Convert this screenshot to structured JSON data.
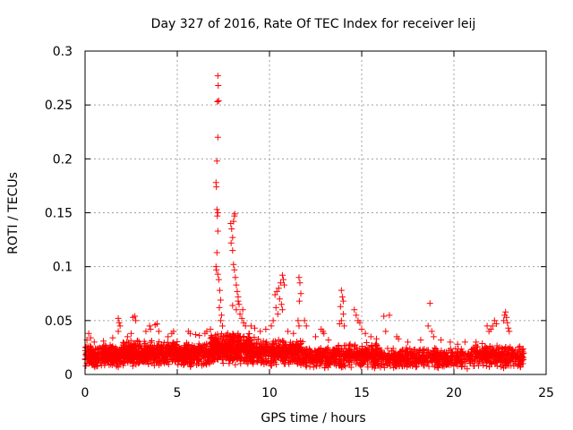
{
  "chart_data": {
    "type": "scatter",
    "title": "Day 327 of 2016, Rate Of TEC Index for receiver leij",
    "xlabel": "GPS time / hours",
    "ylabel": "ROTI / TECUs",
    "xlim": [
      0,
      25
    ],
    "ylim": [
      0,
      0.3
    ],
    "grid": true,
    "marker": "+",
    "series_color": "#ff0000",
    "x_ticks": [
      {
        "value": 0,
        "label": "0"
      },
      {
        "value": 5,
        "label": "5"
      },
      {
        "value": 10,
        "label": "10"
      },
      {
        "value": 15,
        "label": "15"
      },
      {
        "value": 20,
        "label": "20"
      },
      {
        "value": 25,
        "label": "25"
      }
    ],
    "y_ticks": [
      {
        "value": 0,
        "label": "0"
      },
      {
        "value": 0.05,
        "label": "0.05"
      },
      {
        "value": 0.1,
        "label": "0.1"
      },
      {
        "value": 0.15,
        "label": "0.15"
      },
      {
        "value": 0.2,
        "label": "0.2"
      },
      {
        "value": 0.25,
        "label": "0.25"
      },
      {
        "value": 0.3,
        "label": "0.3"
      }
    ],
    "baseline": {
      "x_start": 0,
      "x_end": 23.8,
      "seed": 327,
      "note": "dense band of ROTI values in roughly 0.005-0.03 TECU/s for every satellite pass",
      "bands": [
        {
          "x": [
            0.0,
            2.0
          ],
          "y": [
            0.006,
            0.028
          ],
          "n": 320
        },
        {
          "x": [
            2.0,
            5.0
          ],
          "y": [
            0.007,
            0.032
          ],
          "n": 480
        },
        {
          "x": [
            5.0,
            6.8
          ],
          "y": [
            0.007,
            0.03
          ],
          "n": 280
        },
        {
          "x": [
            6.8,
            9.2
          ],
          "y": [
            0.008,
            0.04
          ],
          "n": 460
        },
        {
          "x": [
            9.2,
            11.8
          ],
          "y": [
            0.007,
            0.034
          ],
          "n": 380
        },
        {
          "x": [
            11.8,
            13.5
          ],
          "y": [
            0.006,
            0.026
          ],
          "n": 200
        },
        {
          "x": [
            13.5,
            16.0
          ],
          "y": [
            0.005,
            0.03
          ],
          "n": 300
        },
        {
          "x": [
            16.0,
            18.0
          ],
          "y": [
            0.005,
            0.026
          ],
          "n": 220
        },
        {
          "x": [
            18.0,
            21.0
          ],
          "y": [
            0.005,
            0.025
          ],
          "n": 280
        },
        {
          "x": [
            21.0,
            22.5
          ],
          "y": [
            0.006,
            0.03
          ],
          "n": 160
        },
        {
          "x": [
            22.5,
            23.8
          ],
          "y": [
            0.005,
            0.027
          ],
          "n": 140
        }
      ]
    },
    "points": [
      [
        7.2,
        0.277
      ],
      [
        7.22,
        0.268
      ],
      [
        7.18,
        0.253
      ],
      [
        7.24,
        0.254
      ],
      [
        7.2,
        0.22
      ],
      [
        7.15,
        0.198
      ],
      [
        7.1,
        0.178
      ],
      [
        7.12,
        0.174
      ],
      [
        7.15,
        0.153
      ],
      [
        7.2,
        0.15
      ],
      [
        7.17,
        0.147
      ],
      [
        7.2,
        0.133
      ],
      [
        7.15,
        0.113
      ],
      [
        7.1,
        0.1
      ],
      [
        7.12,
        0.097
      ],
      [
        7.2,
        0.093
      ],
      [
        7.25,
        0.088
      ],
      [
        7.3,
        0.078
      ],
      [
        7.35,
        0.069
      ],
      [
        7.28,
        0.062
      ],
      [
        7.4,
        0.055
      ],
      [
        7.35,
        0.05
      ],
      [
        7.45,
        0.045
      ],
      [
        7.9,
        0.14
      ],
      [
        7.95,
        0.135
      ],
      [
        8.0,
        0.127
      ],
      [
        7.92,
        0.122
      ],
      [
        8.05,
        0.142
      ],
      [
        8.1,
        0.147
      ],
      [
        8.12,
        0.149
      ],
      [
        8.0,
        0.115
      ],
      [
        8.05,
        0.102
      ],
      [
        8.1,
        0.097
      ],
      [
        8.15,
        0.09
      ],
      [
        8.2,
        0.083
      ],
      [
        8.25,
        0.077
      ],
      [
        8.3,
        0.072
      ],
      [
        8.35,
        0.065
      ],
      [
        8.2,
        0.06
      ],
      [
        8.4,
        0.056
      ],
      [
        8.5,
        0.052
      ],
      [
        8.6,
        0.048
      ],
      [
        8.7,
        0.045
      ],
      [
        8.0,
        0.064
      ],
      [
        8.3,
        0.068
      ],
      [
        8.55,
        0.06
      ],
      [
        10.3,
        0.074
      ],
      [
        10.4,
        0.077
      ],
      [
        10.5,
        0.08
      ],
      [
        10.6,
        0.085
      ],
      [
        10.7,
        0.092
      ],
      [
        10.75,
        0.088
      ],
      [
        10.8,
        0.083
      ],
      [
        10.55,
        0.07
      ],
      [
        10.65,
        0.065
      ],
      [
        10.7,
        0.06
      ],
      [
        10.35,
        0.062
      ],
      [
        10.45,
        0.056
      ],
      [
        10.2,
        0.05
      ],
      [
        10.1,
        0.045
      ],
      [
        11.6,
        0.09
      ],
      [
        11.65,
        0.085
      ],
      [
        11.7,
        0.075
      ],
      [
        11.62,
        0.068
      ],
      [
        11.55,
        0.05
      ],
      [
        11.6,
        0.045
      ],
      [
        12.0,
        0.045
      ],
      [
        11.9,
        0.05
      ],
      [
        12.8,
        0.042
      ],
      [
        12.9,
        0.04
      ],
      [
        12.95,
        0.038
      ],
      [
        13.9,
        0.078
      ],
      [
        13.95,
        0.072
      ],
      [
        14.0,
        0.068
      ],
      [
        13.85,
        0.063
      ],
      [
        14.0,
        0.056
      ],
      [
        13.9,
        0.05
      ],
      [
        13.8,
        0.047
      ],
      [
        14.05,
        0.045
      ],
      [
        14.6,
        0.06
      ],
      [
        14.7,
        0.055
      ],
      [
        14.8,
        0.05
      ],
      [
        14.9,
        0.048
      ],
      [
        15.0,
        0.042
      ],
      [
        15.2,
        0.038
      ],
      [
        16.2,
        0.054
      ],
      [
        16.5,
        0.055
      ],
      [
        16.3,
        0.04
      ],
      [
        16.9,
        0.035
      ],
      [
        17.0,
        0.033
      ],
      [
        18.7,
        0.066
      ],
      [
        18.6,
        0.045
      ],
      [
        18.8,
        0.04
      ],
      [
        18.9,
        0.035
      ],
      [
        19.3,
        0.032
      ],
      [
        20.6,
        0.03
      ],
      [
        21.8,
        0.045
      ],
      [
        21.9,
        0.04
      ],
      [
        22.0,
        0.042
      ],
      [
        22.1,
        0.045
      ],
      [
        22.2,
        0.05
      ],
      [
        22.3,
        0.047
      ],
      [
        22.7,
        0.05
      ],
      [
        22.75,
        0.055
      ],
      [
        22.8,
        0.058
      ],
      [
        22.85,
        0.053
      ],
      [
        22.9,
        0.048
      ],
      [
        22.95,
        0.043
      ],
      [
        23.0,
        0.04
      ],
      [
        0.2,
        0.038
      ],
      [
        0.3,
        0.034
      ],
      [
        0.1,
        0.032
      ],
      [
        0.5,
        0.03
      ],
      [
        1.0,
        0.031
      ],
      [
        1.5,
        0.034
      ],
      [
        1.8,
        0.04
      ],
      [
        1.8,
        0.052
      ],
      [
        1.85,
        0.048
      ],
      [
        1.9,
        0.045
      ],
      [
        2.6,
        0.053
      ],
      [
        2.7,
        0.054
      ],
      [
        2.75,
        0.05
      ],
      [
        2.3,
        0.035
      ],
      [
        2.5,
        0.038
      ],
      [
        3.3,
        0.04
      ],
      [
        3.5,
        0.045
      ],
      [
        3.55,
        0.042
      ],
      [
        3.8,
        0.046
      ],
      [
        3.9,
        0.047
      ],
      [
        4.0,
        0.04
      ],
      [
        4.5,
        0.035
      ],
      [
        4.7,
        0.038
      ],
      [
        4.8,
        0.04
      ],
      [
        5.6,
        0.04
      ],
      [
        5.7,
        0.038
      ],
      [
        6.0,
        0.037
      ],
      [
        6.2,
        0.036
      ],
      [
        6.5,
        0.038
      ],
      [
        6.6,
        0.04
      ],
      [
        6.8,
        0.042
      ],
      [
        9.0,
        0.045
      ],
      [
        9.2,
        0.043
      ],
      [
        9.5,
        0.04
      ],
      [
        9.8,
        0.042
      ],
      [
        11.0,
        0.04
      ],
      [
        11.3,
        0.038
      ],
      [
        12.5,
        0.035
      ],
      [
        13.2,
        0.032
      ],
      [
        15.5,
        0.035
      ],
      [
        15.8,
        0.033
      ],
      [
        17.5,
        0.03
      ],
      [
        18.2,
        0.032
      ],
      [
        19.8,
        0.03
      ],
      [
        20.2,
        0.028
      ],
      [
        21.2,
        0.03
      ],
      [
        23.5,
        0.025
      ]
    ]
  }
}
